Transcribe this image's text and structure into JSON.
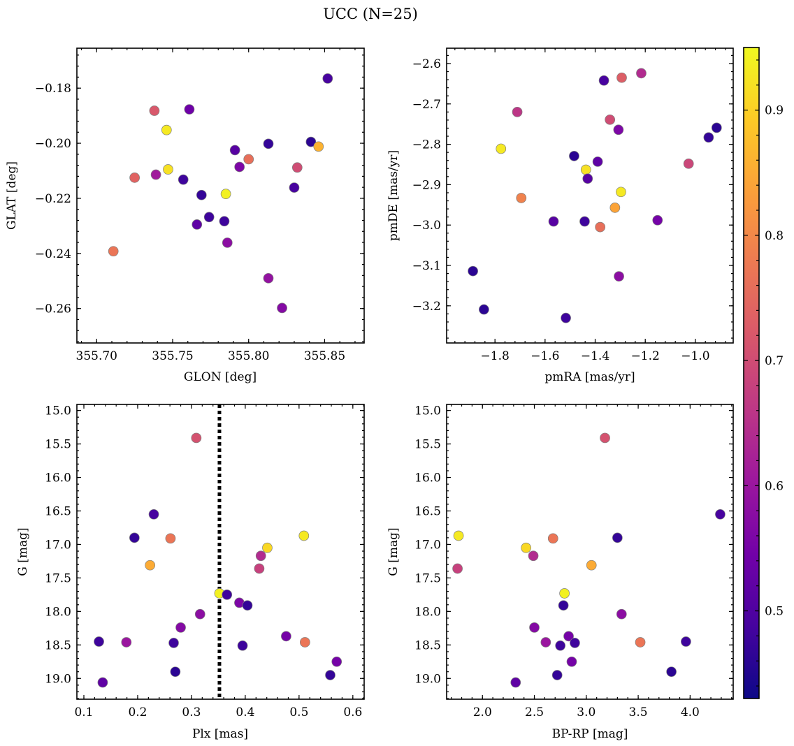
{
  "figure": {
    "title": "UCC (N=25)"
  },
  "colorbar": {
    "range": [
      0.43,
      0.95
    ],
    "ticks": [
      0.5,
      0.6,
      0.7,
      0.8,
      0.9
    ],
    "tick_labels": [
      "0.5",
      "0.6",
      "0.7",
      "0.8",
      "0.9"
    ],
    "colormap": "plasma"
  },
  "chart_data": [
    {
      "type": "scatter",
      "xlabel": "GLON [deg]",
      "ylabel": "GLAT [deg]",
      "xlim": [
        355.687,
        355.876
      ],
      "ylim": [
        -0.2725,
        -0.1655
      ],
      "y_inverted": false,
      "xticks": [
        355.7,
        355.75,
        355.8,
        355.85
      ],
      "xtick_labels": [
        "355.70",
        "355.75",
        "355.80",
        "355.85"
      ],
      "yticks": [
        -0.18,
        -0.2,
        -0.22,
        -0.24,
        -0.26
      ],
      "ytick_labels": [
        "−0.18",
        "−0.20",
        "−0.22",
        "−0.24",
        "−0.26"
      ],
      "x": [
        355.852,
        355.738,
        355.761,
        355.746,
        355.841,
        355.846,
        355.813,
        355.791,
        355.8,
        355.832,
        355.794,
        355.725,
        355.739,
        355.747,
        355.757,
        355.83,
        355.769,
        355.785,
        355.774,
        355.784,
        355.766,
        355.786,
        355.711,
        355.813,
        355.822
      ],
      "y": [
        -0.1765,
        -0.1882,
        -0.1877,
        -0.1952,
        -0.1995,
        -0.2012,
        -0.2002,
        -0.2025,
        -0.2058,
        -0.2088,
        -0.2086,
        -0.2125,
        -0.2114,
        -0.2095,
        -0.2132,
        -0.2161,
        -0.2188,
        -0.2184,
        -0.2268,
        -0.2283,
        -0.2295,
        -0.2361,
        -0.2392,
        -0.249,
        -0.2598
      ],
      "c": [
        0.49,
        0.72,
        0.54,
        0.93,
        0.46,
        0.86,
        0.47,
        0.51,
        0.76,
        0.7,
        0.56,
        0.74,
        0.61,
        0.92,
        0.48,
        0.49,
        0.47,
        0.94,
        0.48,
        0.48,
        0.52,
        0.58,
        0.77,
        0.59,
        0.57
      ]
    },
    {
      "type": "scatter",
      "xlabel": "pmRA [mas/yr]",
      "ylabel": "pmDE [mas/yr]",
      "xlim": [
        -1.993,
        -0.849
      ],
      "ylim": [
        -3.292,
        -2.562
      ],
      "y_inverted": false,
      "xticks": [
        -1.8,
        -1.6,
        -1.4,
        -1.2,
        -1.0
      ],
      "xtick_labels": [
        "−1.8",
        "−1.6",
        "−1.4",
        "−1.2",
        "−1.0"
      ],
      "yticks": [
        -2.6,
        -2.7,
        -2.8,
        -2.9,
        -3.0,
        -3.1,
        -3.2
      ],
      "ytick_labels": [
        "−2.6",
        "−2.7",
        "−2.8",
        "−2.9",
        "−3.0",
        "−3.1",
        "−3.2"
      ],
      "x": [
        -1.216,
        -1.294,
        -1.365,
        -1.711,
        -1.341,
        -1.307,
        -0.915,
        -1.776,
        -0.947,
        -1.484,
        -1.39,
        -1.027,
        -1.437,
        -1.43,
        -1.297,
        -1.695,
        -1.321,
        -1.566,
        -1.442,
        -1.38,
        -1.151,
        -1.305,
        -1.888,
        -1.844,
        -1.517
      ],
      "y": [
        -2.624,
        -2.635,
        -2.642,
        -2.72,
        -2.739,
        -2.764,
        -2.759,
        -2.811,
        -2.783,
        -2.829,
        -2.843,
        -2.848,
        -2.863,
        -2.885,
        -2.918,
        -2.933,
        -2.957,
        -2.991,
        -2.991,
        -3.005,
        -2.988,
        -3.127,
        -3.114,
        -3.209,
        -3.23
      ],
      "c": [
        0.64,
        0.73,
        0.49,
        0.66,
        0.7,
        0.56,
        0.46,
        0.93,
        0.47,
        0.46,
        0.52,
        0.69,
        0.92,
        0.51,
        0.93,
        0.79,
        0.84,
        0.51,
        0.48,
        0.76,
        0.55,
        0.58,
        0.46,
        0.46,
        0.48
      ]
    },
    {
      "type": "scatter",
      "xlabel": "Plx [mas]",
      "ylabel": "G [mag]",
      "xlim": [
        0.087,
        0.621
      ],
      "ylim": [
        19.31,
        14.91
      ],
      "y_inverted": true,
      "xticks": [
        0.1,
        0.2,
        0.3,
        0.4,
        0.5,
        0.6
      ],
      "xtick_labels": [
        "0.1",
        "0.2",
        "0.3",
        "0.4",
        "0.5",
        "0.6"
      ],
      "yticks": [
        15.0,
        15.5,
        16.0,
        16.5,
        17.0,
        17.5,
        18.0,
        18.5,
        19.0
      ],
      "ytick_labels": [
        "15.0",
        "15.5",
        "16.0",
        "16.5",
        "17.0",
        "17.5",
        "18.0",
        "18.5",
        "19.0"
      ],
      "vline": {
        "x": 0.352,
        "style": "dotted"
      },
      "x": [
        0.309,
        0.23,
        0.509,
        0.194,
        0.261,
        0.441,
        0.429,
        0.223,
        0.426,
        0.352,
        0.366,
        0.389,
        0.404,
        0.316,
        0.28,
        0.476,
        0.128,
        0.179,
        0.267,
        0.511,
        0.395,
        0.57,
        0.27,
        0.558,
        0.135
      ],
      "y": [
        15.41,
        16.55,
        16.87,
        16.9,
        16.91,
        17.05,
        17.17,
        17.31,
        17.36,
        17.73,
        17.75,
        17.87,
        17.91,
        18.04,
        18.24,
        18.37,
        18.45,
        18.46,
        18.47,
        18.46,
        18.51,
        18.75,
        18.9,
        18.95,
        19.06
      ],
      "c": [
        0.71,
        0.49,
        0.93,
        0.47,
        0.77,
        0.91,
        0.64,
        0.85,
        0.68,
        0.94,
        0.48,
        0.56,
        0.47,
        0.58,
        0.57,
        0.55,
        0.48,
        0.6,
        0.48,
        0.77,
        0.48,
        0.55,
        0.46,
        0.47,
        0.52
      ]
    },
    {
      "type": "scatter",
      "xlabel": "BP-RP [mag]",
      "ylabel": "G [mag]",
      "xlim": [
        1.655,
        4.415
      ],
      "ylim": [
        19.31,
        14.91
      ],
      "y_inverted": true,
      "xticks": [
        2.0,
        2.5,
        3.0,
        3.5,
        4.0
      ],
      "xtick_labels": [
        "2.0",
        "2.5",
        "3.0",
        "3.5",
        "4.0"
      ],
      "yticks": [
        15.0,
        15.5,
        16.0,
        16.5,
        17.0,
        17.5,
        18.0,
        18.5,
        19.0
      ],
      "ytick_labels": [
        "15.0",
        "15.5",
        "16.0",
        "16.5",
        "17.0",
        "17.5",
        "18.0",
        "18.5",
        "19.0"
      ],
      "x": [
        3.18,
        4.29,
        1.77,
        3.3,
        2.68,
        2.42,
        2.49,
        3.05,
        1.76,
        2.79,
        2.78,
        3.34,
        2.5,
        2.83,
        2.61,
        3.52,
        3.96,
        2.89,
        2.75,
        2.86,
        3.82,
        2.72,
        2.32
      ],
      "y": [
        15.41,
        16.55,
        16.87,
        16.9,
        16.91,
        17.05,
        17.17,
        17.31,
        17.36,
        17.73,
        17.91,
        18.04,
        18.24,
        18.37,
        18.46,
        18.46,
        18.45,
        18.47,
        18.51,
        18.75,
        18.9,
        18.95,
        19.06
      ],
      "c": [
        0.71,
        0.49,
        0.93,
        0.47,
        0.77,
        0.91,
        0.64,
        0.85,
        0.68,
        0.94,
        0.47,
        0.58,
        0.57,
        0.55,
        0.6,
        0.77,
        0.48,
        0.48,
        0.48,
        0.55,
        0.46,
        0.47,
        0.52
      ]
    }
  ]
}
